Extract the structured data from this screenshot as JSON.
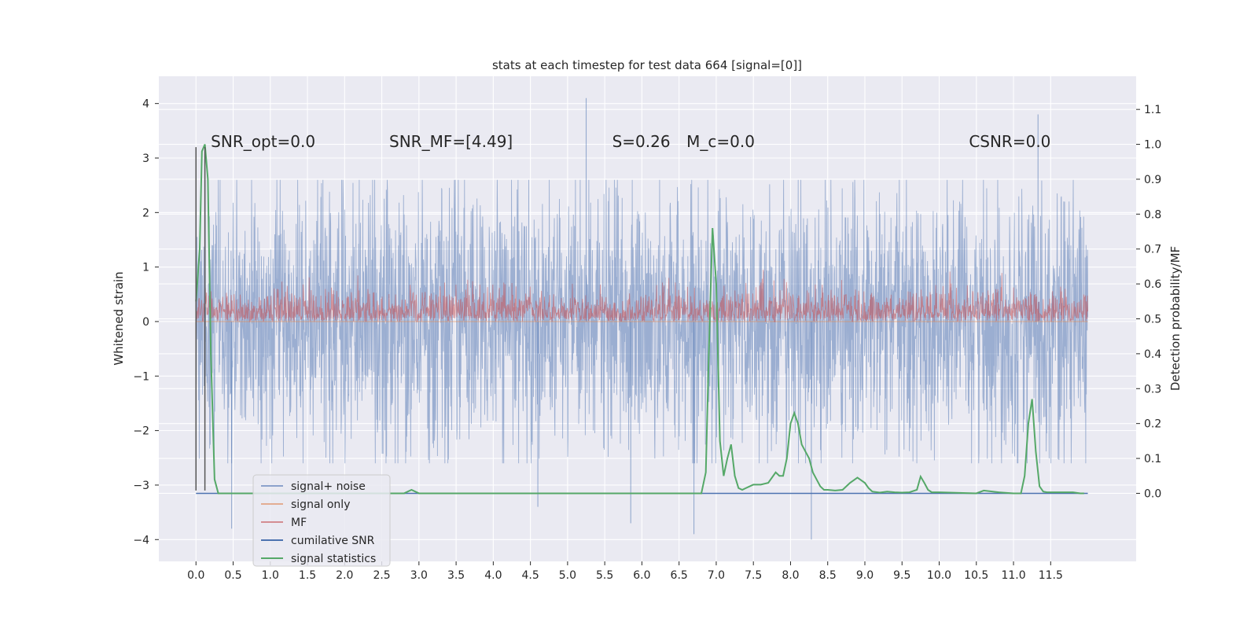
{
  "chart_data": {
    "type": "line",
    "title": "stats at each timestep for test data 664 [signal=[0]]",
    "xlabel": "",
    "ylabel": "Whitened strain",
    "ylabel_right": "Detection probability/MF",
    "xlim": [
      -0.5,
      12.65
    ],
    "ylim": [
      -4.4,
      4.5
    ],
    "ylim_right": [
      -0.195,
      1.195
    ],
    "x_ticks": [
      0.0,
      0.5,
      1.0,
      1.5,
      2.0,
      2.5,
      3.0,
      3.5,
      4.0,
      4.5,
      5.0,
      5.5,
      6.0,
      6.5,
      7.0,
      7.5,
      8.0,
      8.5,
      9.0,
      9.5,
      10.0,
      10.5,
      11.0,
      11.5
    ],
    "y_ticks": [
      -4,
      -3,
      -2,
      -1,
      0,
      1,
      2,
      3,
      4
    ],
    "y_ticks_right": [
      0.0,
      0.1,
      0.2,
      0.3,
      0.4,
      0.5,
      0.6,
      0.7,
      0.8,
      0.9,
      1.0,
      1.1
    ],
    "grid": true,
    "legend_position": "lower-left",
    "annotations": [
      {
        "text": "SNR_opt=0.0",
        "x": 0.2,
        "y": 3.3
      },
      {
        "text": "SNR_MF=[4.49]",
        "x": 2.6,
        "y": 3.3
      },
      {
        "text": "S=0.26",
        "x": 5.6,
        "y": 3.3
      },
      {
        "text": "M_c=0.0",
        "x": 6.6,
        "y": 3.3
      },
      {
        "text": "CSNR=0.0",
        "x": 10.4,
        "y": 3.3
      }
    ],
    "series": [
      {
        "name": "signal+ noise",
        "color": "#4c72b0",
        "axis": "left",
        "style": "dense noise band",
        "x_range": [
          0.0,
          12.0
        ],
        "typical_range": [
          -2.6,
          2.6
        ],
        "peaks": [
          {
            "x": 5.25,
            "y": 4.1
          },
          {
            "x": 11.33,
            "y": 3.8
          },
          {
            "x": 6.7,
            "y": -3.9
          },
          {
            "x": 8.28,
            "y": -4.0
          },
          {
            "x": 0.48,
            "y": -3.8
          },
          {
            "x": 4.6,
            "y": -3.4
          },
          {
            "x": 5.85,
            "y": -3.7
          }
        ]
      },
      {
        "name": "signal only",
        "color": "#dd8452",
        "axis": "left",
        "style": "flat",
        "x_range": [
          0.0,
          12.0
        ],
        "y": 0.0
      },
      {
        "name": "MF",
        "color": "#c44e52",
        "axis": "left",
        "style": "dense band",
        "x_range": [
          0.0,
          12.0
        ],
        "typical_range": [
          0.0,
          0.6
        ]
      },
      {
        "name": "cumilative SNR",
        "color": "#4c72b0",
        "axis": "right",
        "x": [
          0.0,
          12.0
        ],
        "y": [
          0.0,
          0.0
        ]
      },
      {
        "name": "signal statistics",
        "color": "#55a868",
        "axis": "right",
        "x": [
          0.0,
          0.05,
          0.08,
          0.12,
          0.16,
          0.2,
          0.25,
          0.3,
          0.4,
          0.6,
          0.8,
          1.0,
          1.5,
          2.0,
          2.5,
          2.8,
          2.9,
          3.0,
          3.5,
          4.0,
          5.0,
          6.0,
          6.5,
          6.8,
          6.86,
          6.9,
          6.95,
          7.0,
          7.05,
          7.1,
          7.15,
          7.2,
          7.25,
          7.3,
          7.35,
          7.4,
          7.45,
          7.5,
          7.6,
          7.7,
          7.8,
          7.85,
          7.9,
          7.95,
          8.0,
          8.05,
          8.1,
          8.15,
          8.2,
          8.25,
          8.3,
          8.35,
          8.4,
          8.45,
          8.5,
          8.6,
          8.7,
          8.8,
          8.9,
          9.0,
          9.05,
          9.1,
          9.2,
          9.3,
          9.4,
          9.5,
          9.6,
          9.7,
          9.75,
          9.8,
          9.85,
          9.9,
          10.0,
          10.5,
          10.6,
          10.8,
          11.0,
          11.1,
          11.15,
          11.2,
          11.25,
          11.3,
          11.35,
          11.4,
          11.45,
          11.5,
          11.6,
          11.7,
          11.8,
          11.9,
          11.95
        ],
        "y": [
          0.55,
          0.7,
          0.98,
          1.0,
          0.9,
          0.4,
          0.04,
          0.0,
          0.0,
          0.0,
          0.0,
          0.0,
          0.0,
          0.0,
          0.0,
          0.0,
          0.01,
          0.0,
          0.0,
          0.0,
          0.0,
          0.0,
          0.0,
          0.0,
          0.06,
          0.4,
          0.76,
          0.6,
          0.15,
          0.05,
          0.1,
          0.14,
          0.05,
          0.015,
          0.01,
          0.015,
          0.02,
          0.025,
          0.025,
          0.03,
          0.06,
          0.05,
          0.05,
          0.1,
          0.2,
          0.23,
          0.2,
          0.14,
          0.12,
          0.1,
          0.06,
          0.04,
          0.02,
          0.01,
          0.01,
          0.008,
          0.01,
          0.03,
          0.045,
          0.03,
          0.015,
          0.005,
          0.002,
          0.005,
          0.003,
          0.002,
          0.003,
          0.01,
          0.048,
          0.03,
          0.01,
          0.003,
          0.003,
          0.0,
          0.008,
          0.003,
          0.0,
          0.0,
          0.05,
          0.2,
          0.27,
          0.12,
          0.02,
          0.005,
          0.003,
          0.003,
          0.003,
          0.003,
          0.003,
          0.0,
          0.0
        ]
      }
    ],
    "vertical_lines": [
      {
        "x": 0.0,
        "y_from": -3.1,
        "y_to": 3.2,
        "color": "#555555"
      },
      {
        "x": 0.12,
        "y_from": -3.1,
        "y_to": 3.2,
        "color": "#555555"
      }
    ]
  }
}
